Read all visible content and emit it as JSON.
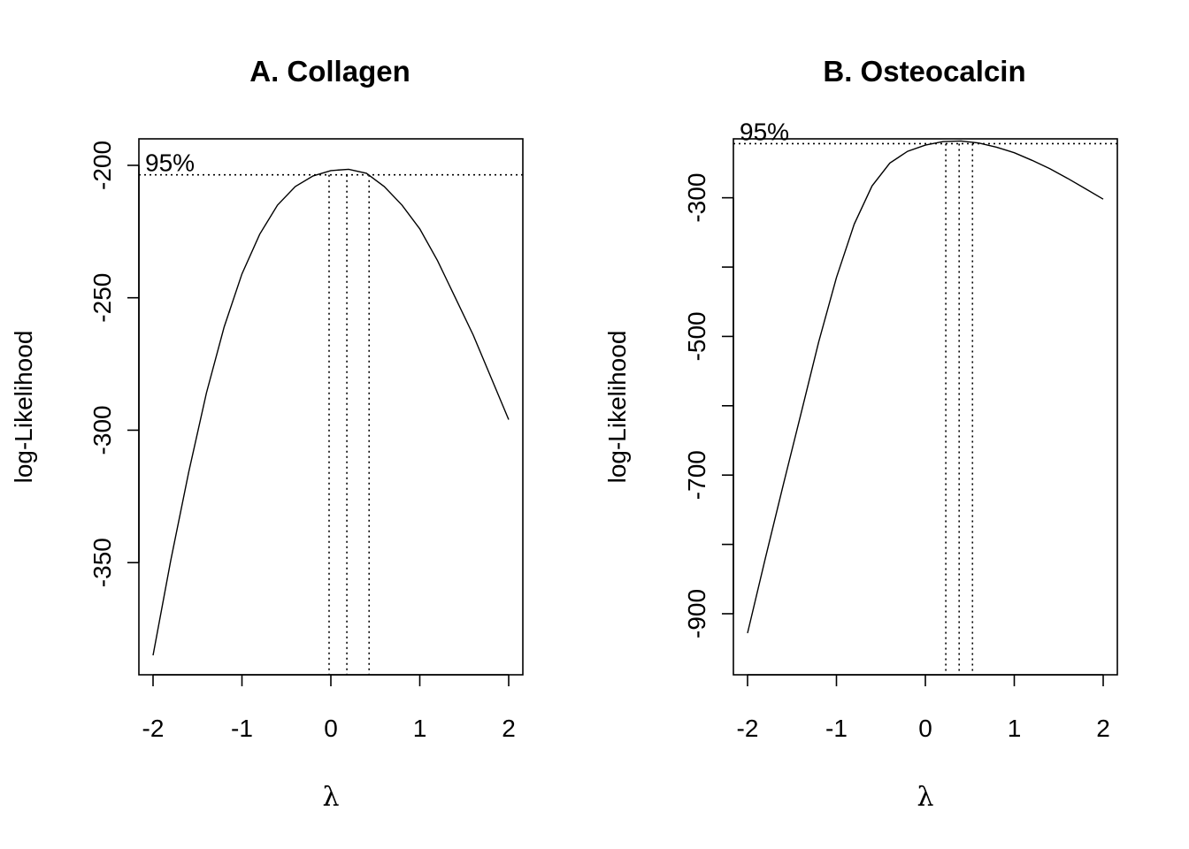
{
  "chart_data": [
    {
      "type": "line",
      "title": "A. Collagen",
      "xlabel": "λ",
      "ylabel": "log-Likelihood",
      "xlim": [
        -2,
        2
      ],
      "ylim": [
        -385,
        -190
      ],
      "x_ticks": [
        -2,
        -1,
        0,
        1,
        2
      ],
      "y_ticks": [
        -200,
        -250,
        -300,
        -350
      ],
      "x_tick_labels": [
        "-2",
        "-1",
        "0",
        "1",
        "2"
      ],
      "y_tick_labels": [
        "-200",
        "-250",
        "-300",
        "-350"
      ],
      "ci_label": "95%",
      "ci_level_y": -203.6,
      "ci_bounds_x": [
        -0.02,
        0.43
      ],
      "lambda_hat": 0.18,
      "grid": false,
      "series": [
        {
          "x": [
            -2.0,
            -1.8,
            -1.6,
            -1.4,
            -1.2,
            -1.0,
            -0.8,
            -0.6,
            -0.4,
            -0.2,
            0.0,
            0.2,
            0.4,
            0.6,
            0.8,
            1.0,
            1.2,
            1.4,
            1.6,
            1.8,
            2.0
          ],
          "y": [
            -385,
            -349,
            -316,
            -286,
            -261,
            -241,
            -226,
            -215,
            -208,
            -204,
            -202,
            -201.5,
            -203,
            -208,
            -215,
            -224,
            -236,
            -250,
            -264,
            -280,
            -296
          ]
        }
      ]
    },
    {
      "type": "line",
      "title": "B. Osteocalcin",
      "xlabel": "λ",
      "ylabel": "log-Likelihood",
      "xlim": [
        -2,
        2
      ],
      "ylim": [
        -960,
        -215
      ],
      "x_ticks": [
        -2,
        -1,
        0,
        1,
        2
      ],
      "y_ticks": [
        -300,
        -400,
        -500,
        -600,
        -700,
        -800,
        -900
      ],
      "x_tick_labels": [
        "-2",
        "-1",
        "0",
        "1",
        "2"
      ],
      "y_tick_labels": [
        "-300",
        "",
        "-500",
        "",
        "-700",
        "",
        "-900"
      ],
      "ci_label": "95%",
      "ci_level_y": -222,
      "ci_bounds_x": [
        0.23,
        0.53
      ],
      "lambda_hat": 0.38,
      "grid": false,
      "series": [
        {
          "x": [
            -2.0,
            -1.8,
            -1.6,
            -1.4,
            -1.2,
            -1.0,
            -0.8,
            -0.6,
            -0.4,
            -0.2,
            0.0,
            0.2,
            0.4,
            0.6,
            0.8,
            1.0,
            1.2,
            1.4,
            1.6,
            1.8,
            2.0
          ],
          "y": [
            -928,
            -820,
            -715,
            -612,
            -508,
            -415,
            -338,
            -283,
            -250,
            -233,
            -224,
            -219,
            -218,
            -221,
            -227,
            -235,
            -246,
            -258,
            -272,
            -287,
            -302
          ]
        }
      ]
    }
  ]
}
